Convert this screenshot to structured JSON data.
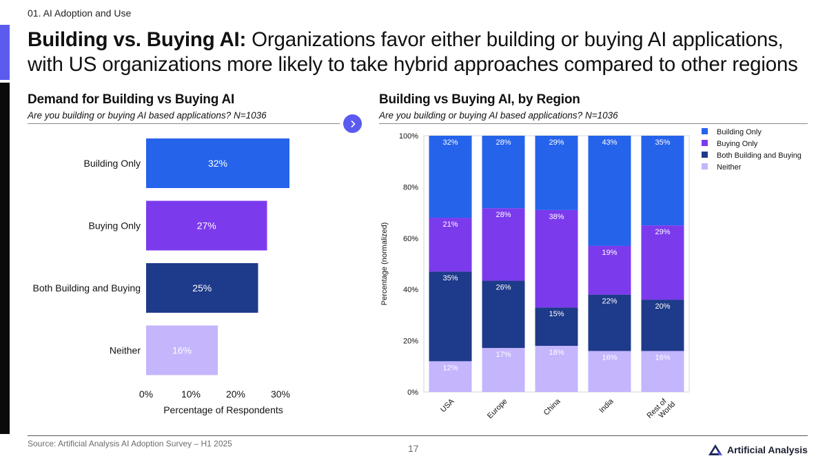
{
  "header": {
    "section": "01. AI Adoption and Use",
    "title_bold": "Building vs. Buying AI:",
    "title_rest": " Organizations favor either building or buying AI applications, with US organizations more likely to take hybrid approaches compared to other regions"
  },
  "left_panel": {
    "title": "Demand for Building vs Buying AI",
    "subtitle": "Are you building or buying AI based applications? N=1036"
  },
  "right_panel": {
    "title": "Building vs Buying AI, by Region",
    "subtitle": "Are you building or buying AI based applications? N=1036"
  },
  "footer": {
    "source": "Source: Artificial Analysis AI Adoption Survey – H1 2025",
    "page": "17",
    "brand": "Artificial Analysis"
  },
  "colors": {
    "building_only": "#2563eb",
    "buying_only": "#7c3aed",
    "both": "#1e3a8a",
    "neither": "#c4b5fd",
    "accent": "#5b5bf0"
  },
  "chart_data": [
    {
      "type": "bar",
      "orientation": "horizontal",
      "title": "Demand for Building vs Buying AI",
      "categories": [
        "Building Only",
        "Buying Only",
        "Both Building and Buying",
        "Neither"
      ],
      "values": [
        32,
        27,
        25,
        16
      ],
      "labels": [
        "32%",
        "27%",
        "25%",
        "16%"
      ],
      "xlabel": "Percentage of Respondents",
      "ylabel": "",
      "xlim": [
        0,
        33
      ],
      "xticks": [
        0,
        10,
        20,
        30
      ],
      "xtick_labels": [
        "0%",
        "10%",
        "20%",
        "30%"
      ]
    },
    {
      "type": "bar",
      "stacked": true,
      "title": "Building vs Buying AI, by Region",
      "categories": [
        "USA",
        "Europe",
        "China",
        "India",
        "Rest of World"
      ],
      "series": [
        {
          "name": "Neither",
          "values": [
            12,
            17,
            18,
            16,
            16
          ],
          "labels": [
            "12%",
            "17%",
            "18%",
            "16%",
            "16%"
          ]
        },
        {
          "name": "Both Building and Buying",
          "values": [
            35,
            26,
            15,
            22,
            20
          ],
          "labels": [
            "35%",
            "26%",
            "15%",
            "22%",
            "20%"
          ]
        },
        {
          "name": "Buying Only",
          "values": [
            21,
            28,
            38,
            19,
            29
          ],
          "labels": [
            "21%",
            "28%",
            "38%",
            "19%",
            "29%"
          ]
        },
        {
          "name": "Building Only",
          "values": [
            32,
            28,
            29,
            43,
            35
          ],
          "labels": [
            "32%",
            "28%",
            "29%",
            "43%",
            "35%"
          ]
        }
      ],
      "legend": [
        "Building Only",
        "Buying Only",
        "Both Building and Buying",
        "Neither"
      ],
      "ylabel": "Percentage (normalized)",
      "ylim": [
        0,
        100
      ],
      "yticks": [
        0,
        20,
        40,
        60,
        80,
        100
      ],
      "ytick_labels": [
        "0%",
        "20%",
        "40%",
        "60%",
        "80%",
        "100%"
      ],
      "legend_position": "top-right"
    }
  ]
}
